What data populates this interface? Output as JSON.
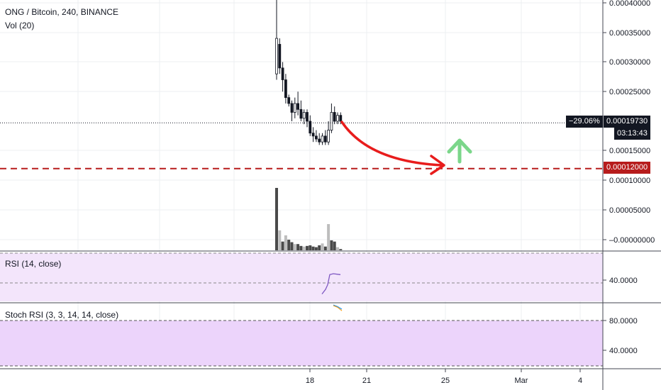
{
  "colors": {
    "up": "#ffffff",
    "down": "#131722",
    "grid": "#eceff2",
    "arrow_red": "#e81c1c",
    "arrow_green": "#7bd68a",
    "target_line": "#b71c1c",
    "rsi_fill": "#f3e5fb",
    "rsi_line": "#7e57c2",
    "stoch_fill": "#ecd4fb",
    "stoch_k": "#2196f3",
    "stoch_d": "#ff9800"
  },
  "header": {
    "title": "ONG / Bitcoin, 240, BINANCE",
    "volume_label": "Vol (20)"
  },
  "price_axis": {
    "labels": [
      "0.00040000",
      "0.00035000",
      "0.00030000",
      "0.00025000",
      "0.00015000",
      "0.00010000",
      "0.00005000",
      "–0.00000000"
    ]
  },
  "current_price": {
    "change": "−29.06%",
    "value": "0.00019730",
    "countdown": "03:13:43"
  },
  "target_price": {
    "value": "0.00012000"
  },
  "rsi": {
    "label": "RSI (14, close)",
    "axis_labels": [
      "40.0000"
    ]
  },
  "stoch_rsi": {
    "label": "Stoch RSI (3, 3, 14, 14, close)",
    "axis_labels": [
      "80.0000",
      "40.0000"
    ]
  },
  "time_axis": {
    "labels": [
      "18",
      "21",
      "25",
      "Mar",
      "4"
    ]
  },
  "chart_data": {
    "type": "candlestick",
    "title": "ONG / Bitcoin, 240, BINANCE",
    "y_axis": {
      "min": -1e-05,
      "max": 0.00041,
      "ticks": [
        0.0,
        5e-05,
        0.0001,
        0.00015,
        0.00025,
        0.0003,
        0.00035,
        0.0004
      ]
    },
    "ohlc": [
      {
        "open": 0.00028,
        "high": 0.00041,
        "low": 0.00027,
        "close": 0.00034
      },
      {
        "open": 0.00033,
        "high": 0.00034,
        "low": 0.00028,
        "close": 0.00029
      },
      {
        "open": 0.00029,
        "high": 0.0003,
        "low": 0.00025,
        "close": 0.00027
      },
      {
        "open": 0.00027,
        "high": 0.00028,
        "low": 0.00023,
        "close": 0.00024
      },
      {
        "open": 0.00024,
        "high": 0.000245,
        "low": 0.000225,
        "close": 0.00023
      },
      {
        "open": 0.00023,
        "high": 0.000235,
        "low": 0.0002,
        "close": 0.000215
      },
      {
        "open": 0.000215,
        "high": 0.00024,
        "low": 0.000205,
        "close": 0.00023
      },
      {
        "open": 0.00023,
        "high": 0.00025,
        "low": 0.00021,
        "close": 0.00022
      },
      {
        "open": 0.00022,
        "high": 0.000235,
        "low": 0.0002,
        "close": 0.000205
      },
      {
        "open": 0.000205,
        "high": 0.00022,
        "low": 0.000195,
        "close": 0.000215
      },
      {
        "open": 0.000215,
        "high": 0.00022,
        "low": 0.00019,
        "close": 0.0002
      },
      {
        "open": 0.0002,
        "high": 0.00021,
        "low": 0.000175,
        "close": 0.00018
      },
      {
        "open": 0.00018,
        "high": 0.00019,
        "low": 0.000165,
        "close": 0.000175
      },
      {
        "open": 0.000175,
        "high": 0.000185,
        "low": 0.000165,
        "close": 0.00017
      },
      {
        "open": 0.00017,
        "high": 0.00018,
        "low": 0.00016,
        "close": 0.000165
      },
      {
        "open": 0.000165,
        "high": 0.00018,
        "low": 0.00016,
        "close": 0.000175
      },
      {
        "open": 0.000175,
        "high": 0.000185,
        "low": 0.00016,
        "close": 0.000165
      },
      {
        "open": 0.000165,
        "high": 0.0002,
        "low": 0.00016,
        "close": 0.000185
      },
      {
        "open": 0.000185,
        "high": 0.00023,
        "low": 0.00018,
        "close": 0.000215
      },
      {
        "open": 0.000215,
        "high": 0.000225,
        "low": 0.000195,
        "close": 0.0002
      },
      {
        "open": 0.0002,
        "high": 0.000215,
        "low": 0.000195,
        "close": 0.00021
      },
      {
        "open": 0.00021,
        "high": 0.000215,
        "low": 0.000195,
        "close": 0.0002
      }
    ],
    "volume": [
      1.0,
      0.32,
      0.14,
      0.24,
      0.17,
      0.13,
      0.1,
      0.1,
      0.07,
      0.06,
      0.07,
      0.08,
      0.06,
      0.05,
      0.08,
      0.11,
      0.06,
      0.42,
      0.16,
      0.14,
      0.05,
      0.02
    ],
    "volume_up": [
      false,
      true,
      false,
      true,
      false,
      false,
      true,
      false,
      false,
      true,
      false,
      false,
      false,
      false,
      false,
      true,
      false,
      true,
      false,
      false,
      true,
      false
    ],
    "rsi_values": [
      28,
      33,
      38,
      49,
      50,
      49
    ],
    "stoch_k": [
      95,
      93,
      90
    ],
    "stoch_d": [
      94,
      92,
      88
    ],
    "current": 0.0001973,
    "target": 0.00012
  }
}
